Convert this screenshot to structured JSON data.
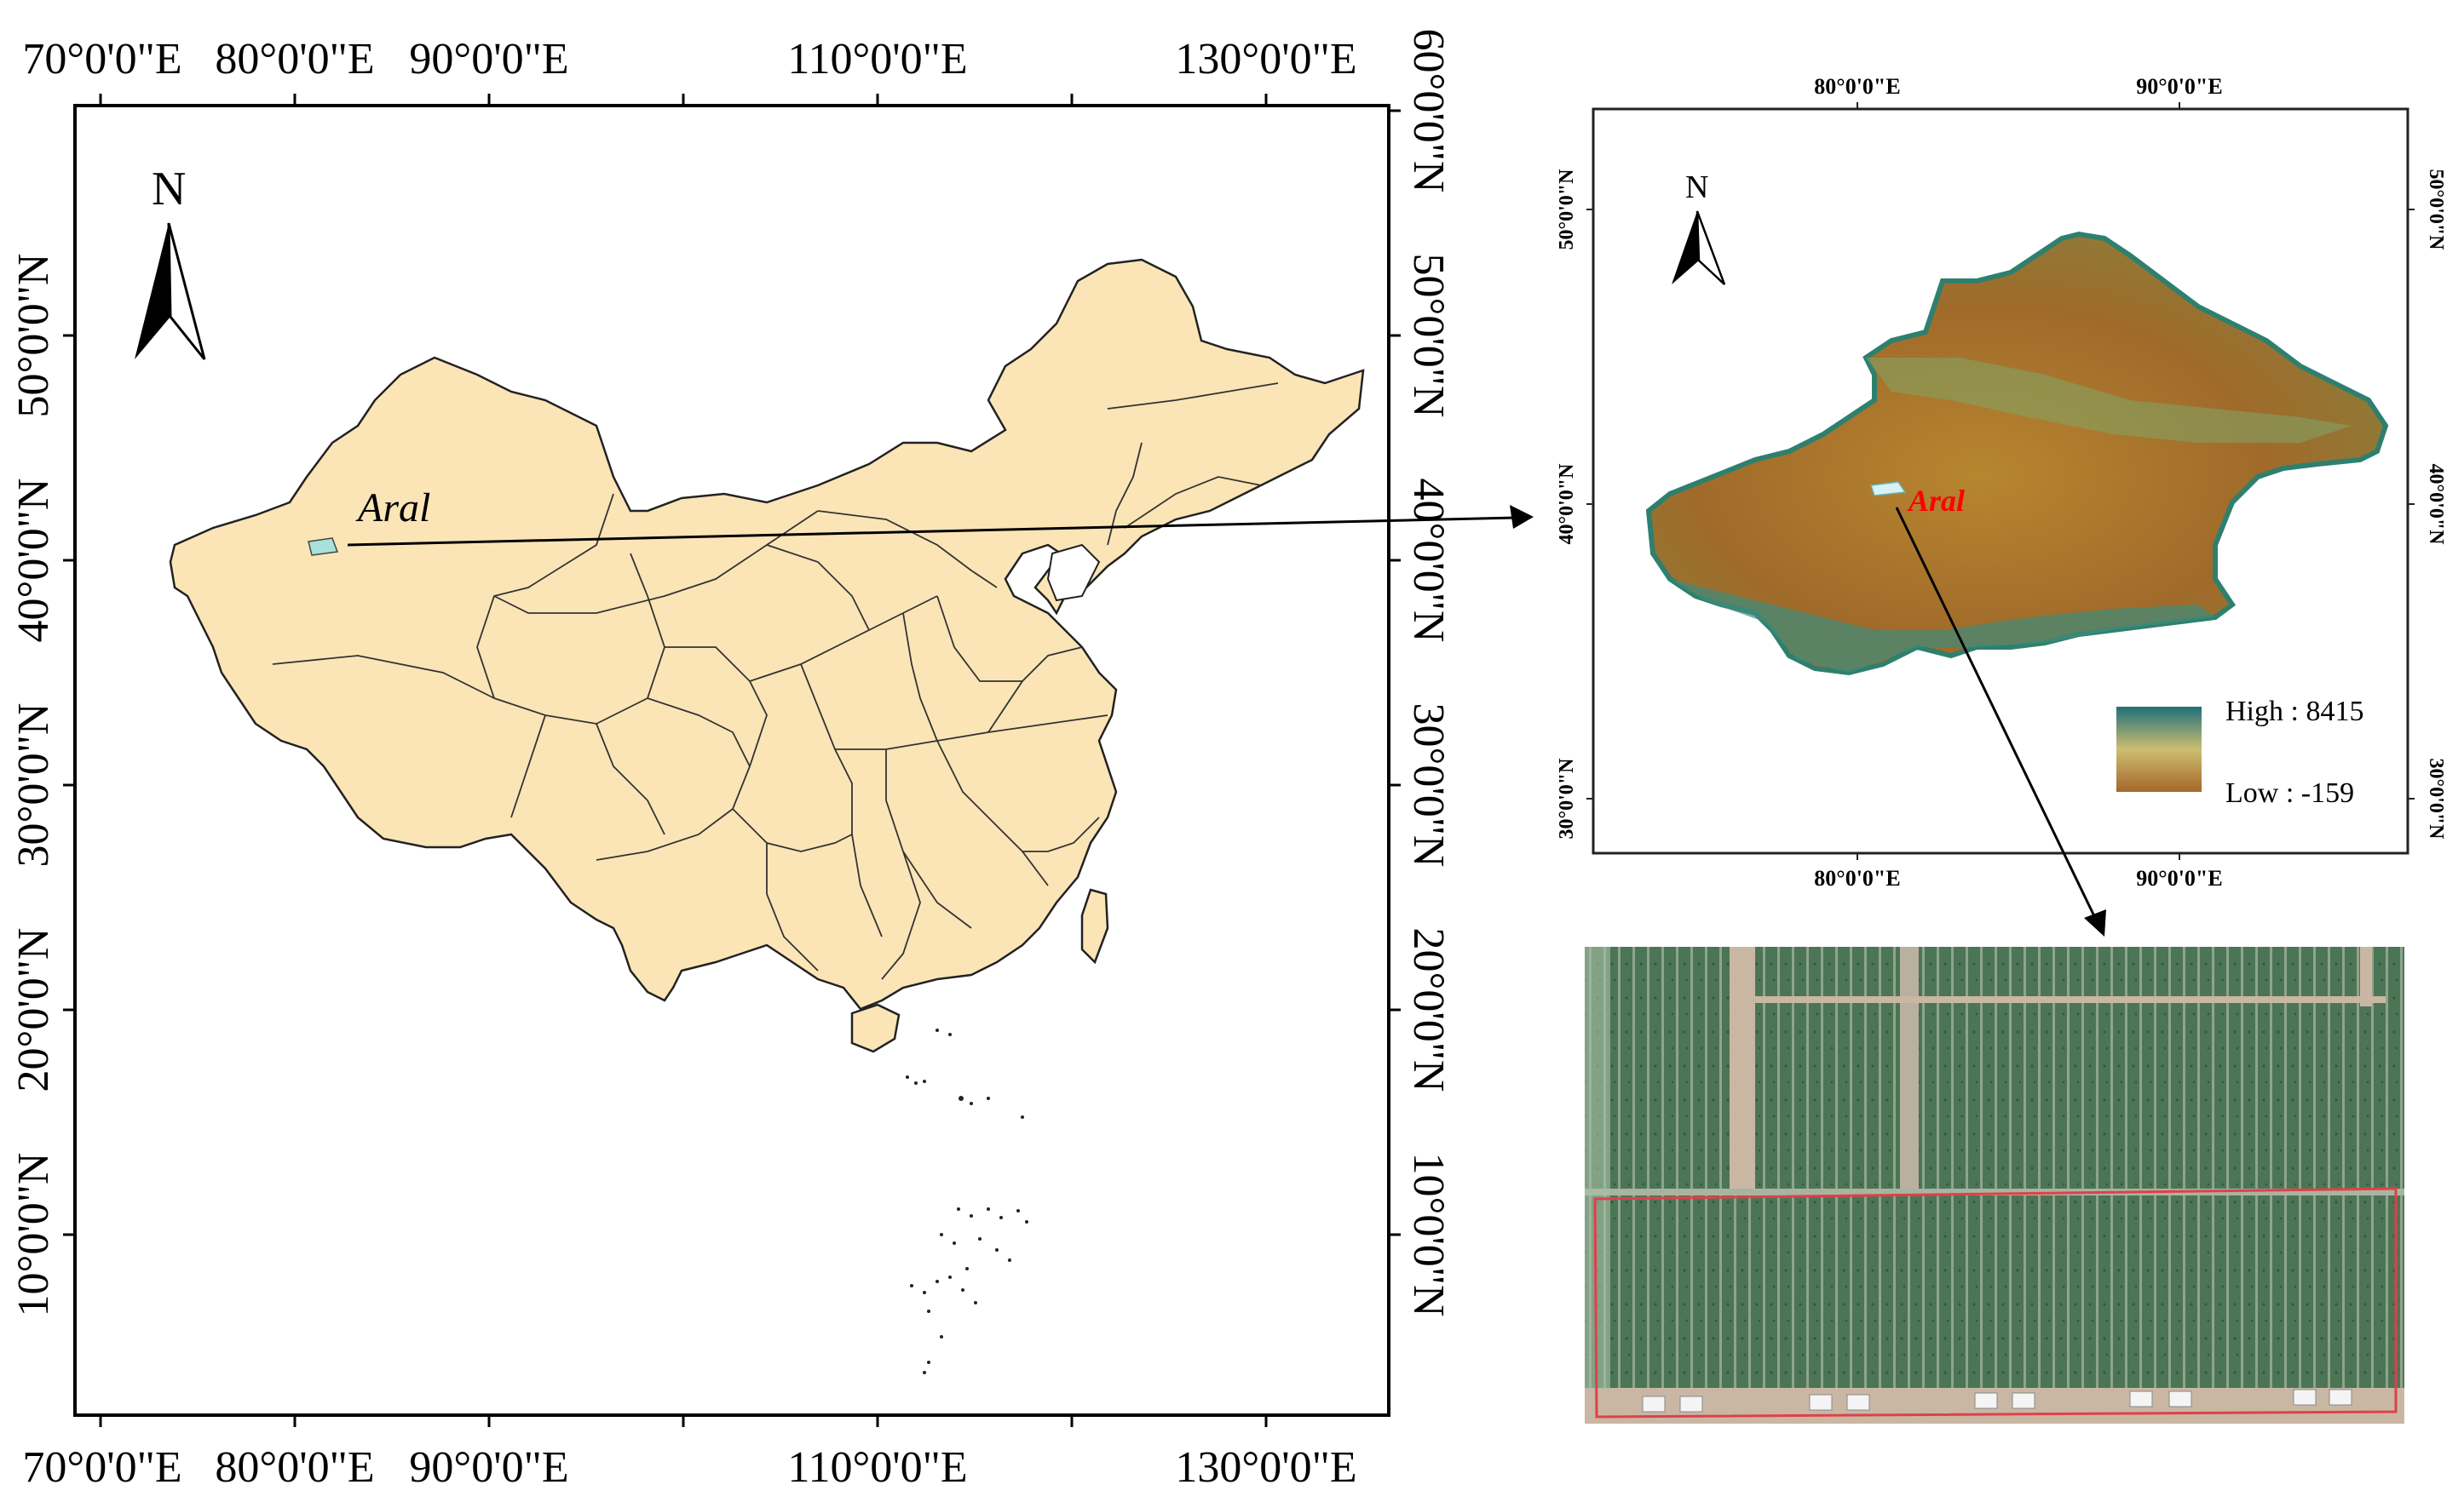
{
  "main_map": {
    "top_lon_labels": [
      "70°0'0\"E",
      "80°0'0\"E",
      "90°0'0\"E",
      "110°0'0\"E",
      "130°0'0\"E"
    ],
    "bottom_lon_labels": [
      "70°0'0\"E",
      "80°0'0\"E",
      "90°0'0\"E",
      "110°0'0\"E",
      "130°0'0\"E"
    ],
    "left_lat_labels": [
      "50°0'0\"N",
      "40°0'0\"N",
      "30°0'0\"N",
      "20°0'0\"N",
      "10°0'0\"N"
    ],
    "right_lat_labels": [
      "60°0'0\"N",
      "50°0'0\"N",
      "40°0'0\"N",
      "30°0'0\"N",
      "20°0'0\"N",
      "10°0'0\"N"
    ],
    "north_label": "N",
    "site_label": "Aral",
    "land_color": "#FBE5B6",
    "site_color": "#A8E0DC"
  },
  "dem_map": {
    "top_lon_labels": [
      "80°0'0\"E",
      "90°0'0\"E"
    ],
    "bottom_lon_labels": [
      "80°0'0\"E",
      "90°0'0\"E"
    ],
    "left_lat_labels": [
      "50°0'0\"N",
      "40°0'0\"N",
      "30°0'0\"N"
    ],
    "right_lat_labels": [
      "50°0'0\"N",
      "40°0'0\"N",
      "30°0'0\"N"
    ],
    "north_label": "N",
    "site_label": "Aral",
    "site_label_color": "#FF0000",
    "legend": {
      "high_label": "High : 8415",
      "low_label": "Low : -159",
      "high_color": "#1F6F78",
      "mid_color": "#CDBE72",
      "low_color": "#A5672B"
    }
  },
  "aerial": {
    "field_color": "#4C7556",
    "road_color": "#C9B7A4",
    "box_color": "#E0404A"
  }
}
